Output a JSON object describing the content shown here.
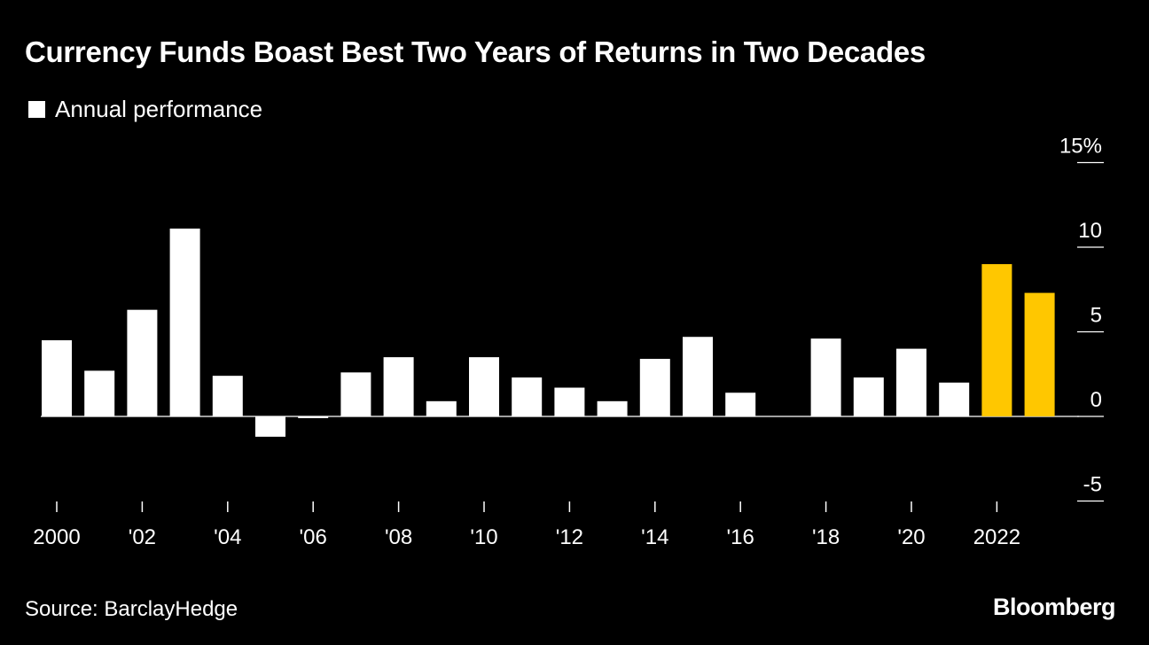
{
  "title": "Currency Funds Boast Best Two Years of Returns in Two Decades",
  "legend": {
    "label": "Annual performance",
    "color": "#ffffff"
  },
  "source": "Source: BarclayHedge",
  "brand": "Bloomberg",
  "colors": {
    "background": "#000000",
    "default_bar": "#ffffff",
    "highlight_bar": "#ffc700"
  },
  "chart_data": {
    "type": "bar",
    "title": "Currency Funds Boast Best Two Years of Returns in Two Decades",
    "xlabel": "",
    "ylabel": "",
    "ylim": [
      -5,
      15
    ],
    "unit": "%",
    "y_ticks": [
      {
        "value": 15,
        "label": "15%"
      },
      {
        "value": 10,
        "label": "10"
      },
      {
        "value": 5,
        "label": "5"
      },
      {
        "value": 0,
        "label": "0"
      },
      {
        "value": -5,
        "label": "-5"
      }
    ],
    "categories": [
      "2000",
      "2001",
      "2002",
      "2003",
      "2004",
      "2005",
      "2006",
      "2007",
      "2008",
      "2009",
      "2010",
      "2011",
      "2012",
      "2013",
      "2014",
      "2015",
      "2016",
      "2017",
      "2018",
      "2019",
      "2020",
      "2021",
      "2022",
      "2023"
    ],
    "x_tick_labels": [
      {
        "category": "2000",
        "label": "2000"
      },
      {
        "category": "2002",
        "label": "'02"
      },
      {
        "category": "2004",
        "label": "'04"
      },
      {
        "category": "2006",
        "label": "'06"
      },
      {
        "category": "2008",
        "label": "'08"
      },
      {
        "category": "2010",
        "label": "'10"
      },
      {
        "category": "2012",
        "label": "'12"
      },
      {
        "category": "2014",
        "label": "'14"
      },
      {
        "category": "2016",
        "label": "'16"
      },
      {
        "category": "2018",
        "label": "'18"
      },
      {
        "category": "2020",
        "label": "'20"
      },
      {
        "category": "2022",
        "label": "2022"
      }
    ],
    "series": [
      {
        "name": "Annual performance",
        "values": [
          4.5,
          2.7,
          6.3,
          11.1,
          2.4,
          -1.2,
          -0.1,
          2.6,
          3.5,
          0.9,
          3.5,
          2.3,
          1.7,
          0.9,
          3.4,
          4.7,
          1.4,
          0.0,
          4.6,
          2.3,
          4.0,
          2.0,
          9.0,
          7.3
        ],
        "highlight": [
          false,
          false,
          false,
          false,
          false,
          false,
          false,
          false,
          false,
          false,
          false,
          false,
          false,
          false,
          false,
          false,
          false,
          false,
          false,
          false,
          false,
          false,
          true,
          true
        ]
      }
    ]
  }
}
